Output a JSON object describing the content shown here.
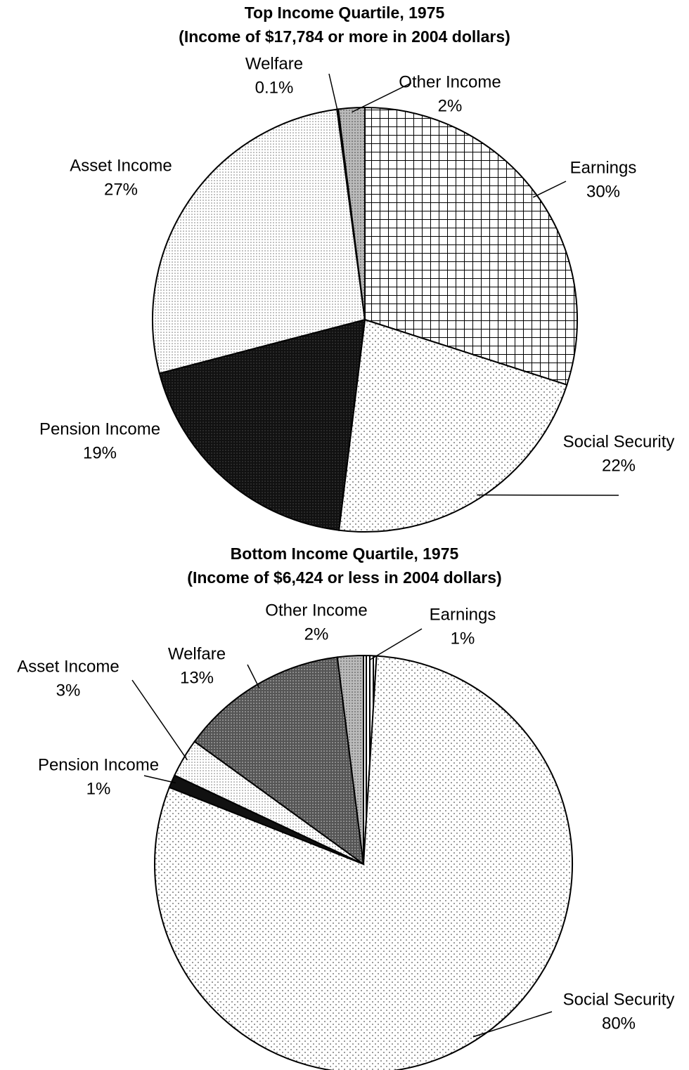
{
  "chart_data": [
    {
      "type": "pie",
      "title": "Top Income Quartile, 1975",
      "subtitle": "(Income of $17,784 or more in 2004 dollars)",
      "categories": [
        "Earnings",
        "Social Security",
        "Pension Income",
        "Asset Income",
        "Welfare",
        "Other Income"
      ],
      "values": [
        30,
        22,
        19,
        27,
        0.1,
        2
      ],
      "value_labels": [
        "30%",
        "22%",
        "19%",
        "27%",
        "0.1%",
        "2%"
      ]
    },
    {
      "type": "pie",
      "title": "Bottom Income Quartile, 1975",
      "subtitle": "(Income of $6,424 or less in 2004 dollars)",
      "categories": [
        "Earnings",
        "Social Security",
        "Pension Income",
        "Asset Income",
        "Welfare",
        "Other Income"
      ],
      "values": [
        1,
        80,
        1,
        3,
        13,
        2
      ],
      "value_labels": [
        "1%",
        "80%",
        "1%",
        "3%",
        "13%",
        "2%"
      ]
    }
  ]
}
